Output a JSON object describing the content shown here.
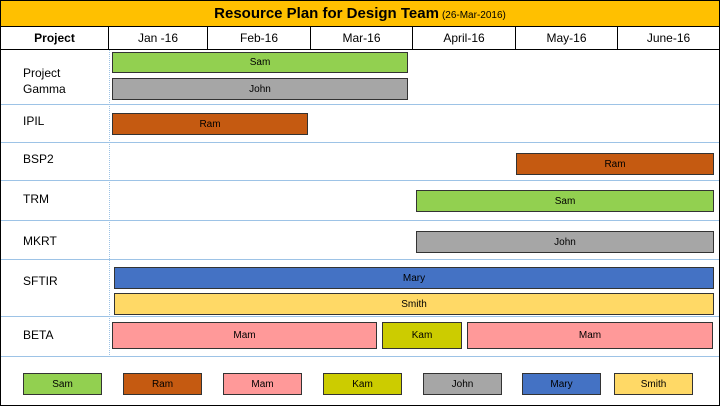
{
  "header": {
    "title": "Resource Plan for Design Team",
    "date": "(26-Mar-2016)"
  },
  "columns": [
    "Project",
    "Jan -16",
    "Feb-16",
    "Mar-16",
    "April-16",
    "May-16",
    "June-16"
  ],
  "projects": [
    {
      "name": "Project Gamma",
      "bars": [
        "Sam",
        "John"
      ]
    },
    {
      "name": "IPIL",
      "bars": [
        "Ram"
      ]
    },
    {
      "name": "BSP2",
      "bars": [
        "Ram"
      ]
    },
    {
      "name": "TRM",
      "bars": [
        "Sam"
      ]
    },
    {
      "name": "MKRT",
      "bars": [
        "John"
      ]
    },
    {
      "name": "SFTIR",
      "bars": [
        "Mary",
        "Smith"
      ]
    },
    {
      "name": "BETA",
      "bars": [
        "Mam",
        "Kam",
        "Mam"
      ]
    }
  ],
  "legend": [
    {
      "label": "Sam",
      "color": "#92D050"
    },
    {
      "label": "Ram",
      "color": "#C55A11"
    },
    {
      "label": "Mam",
      "color": "#FF9999"
    },
    {
      "label": "Kam",
      "color": "#CCCC00"
    },
    {
      "label": "John",
      "color": "#A6A6A6"
    },
    {
      "label": "Mary",
      "color": "#4472C4"
    },
    {
      "label": "Smith",
      "color": "#FFD966"
    }
  ]
}
